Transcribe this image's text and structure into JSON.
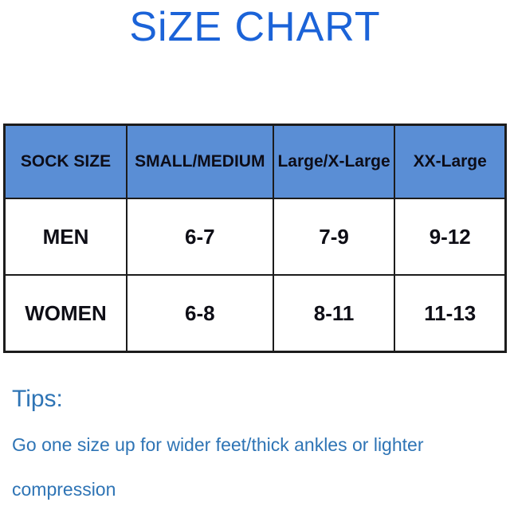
{
  "title": "SiZE CHART",
  "table": {
    "headers": [
      "SOCK SIZE",
      "SMALL/MEDIUM",
      "Large/X-Large",
      "XX-Large"
    ],
    "rows": [
      [
        "MEN",
        "6-7",
        "7-9",
        "9-12"
      ],
      [
        "WOMEN",
        "6-8",
        "8-11",
        "11-13"
      ]
    ]
  },
  "tips": {
    "heading": "Tips:",
    "line1": "Go one size up for wider feet/thick ankles or lighter",
    "line2": "compression"
  },
  "colors": {
    "title_blue": "#1b63d8",
    "header_bg": "#5a8ed5",
    "tips_blue": "#2e74b5",
    "border": "#1c1c1c",
    "cell_text": "#0e0e16"
  },
  "chart_data": {
    "type": "table",
    "title": "SiZE CHART",
    "columns": [
      "SOCK SIZE",
      "SMALL/MEDIUM",
      "Large/X-Large",
      "XX-Large"
    ],
    "rows": [
      {
        "sock_size": "MEN",
        "small_medium": "6-7",
        "large_x_large": "7-9",
        "xx_large": "9-12"
      },
      {
        "sock_size": "WOMEN",
        "small_medium": "6-8",
        "large_x_large": "8-11",
        "xx_large": "11-13"
      }
    ],
    "notes": "Tips: Go one size up for wider feet/thick ankles or lighter compression"
  }
}
